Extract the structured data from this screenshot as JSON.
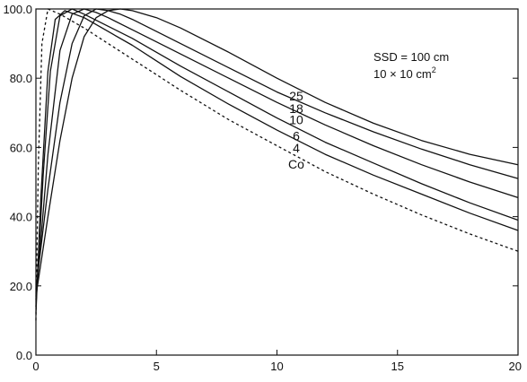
{
  "chart_data": {
    "type": "line",
    "title": "",
    "xlabel": "",
    "ylabel": "",
    "xlim": [
      0,
      20
    ],
    "ylim": [
      0,
      100
    ],
    "x_ticks": [
      "0",
      "5",
      "10",
      "15",
      "20"
    ],
    "y_ticks": [
      "0.0",
      "20.0",
      "40.0",
      "60.0",
      "80.0",
      "100.0"
    ],
    "grid": false,
    "annotation": {
      "line1": "SSD = 100 cm",
      "line2": "10 × 10 cm",
      "line2_sup": "2"
    },
    "series": [
      {
        "name": "25",
        "style": "solid",
        "x": [
          0,
          0.5,
          1,
          1.5,
          2,
          2.5,
          3,
          3.5,
          4,
          5,
          6,
          8,
          10,
          12,
          14,
          16,
          18,
          20
        ],
        "values": [
          17,
          40,
          62,
          80,
          92,
          97.5,
          99.5,
          100,
          99.5,
          97.5,
          94.5,
          87.5,
          80,
          73,
          67,
          62,
          58,
          55
        ]
      },
      {
        "name": "18",
        "style": "solid",
        "x": [
          0,
          0.5,
          1,
          1.5,
          2,
          2.5,
          3,
          3.5,
          4,
          5,
          6,
          8,
          10,
          12,
          14,
          16,
          18,
          20
        ],
        "values": [
          19,
          48,
          73,
          90,
          98,
          100,
          99.5,
          98.5,
          97,
          93.5,
          90,
          83,
          76,
          70,
          64.5,
          59.5,
          55,
          51
        ]
      },
      {
        "name": "10",
        "style": "solid",
        "x": [
          0,
          0.5,
          1,
          1.5,
          2,
          2.5,
          3,
          4,
          5,
          6,
          8,
          10,
          12,
          14,
          16,
          18,
          20
        ],
        "values": [
          16,
          58,
          88,
          98.5,
          100,
          99,
          97.5,
          94,
          90.5,
          87,
          80,
          73,
          66.5,
          60.5,
          55,
          50,
          45.5
        ]
      },
      {
        "name": "6",
        "style": "solid",
        "x": [
          0,
          0.3,
          0.6,
          1,
          1.5,
          2,
          3,
          4,
          5,
          6,
          8,
          10,
          12,
          14,
          16,
          18,
          20
        ],
        "values": [
          14,
          52,
          82,
          98,
          100,
          98.5,
          95,
          91.5,
          87.5,
          83.5,
          76,
          68.5,
          61.5,
          55.5,
          49.5,
          44,
          39
        ]
      },
      {
        "name": "4",
        "style": "solid",
        "x": [
          0,
          0.2,
          0.5,
          0.8,
          1.2,
          2,
          3,
          4,
          5,
          6,
          8,
          10,
          12,
          14,
          16,
          18,
          20
        ],
        "values": [
          12,
          45,
          82,
          97,
          99.5,
          97.5,
          93.5,
          89.5,
          85,
          80.5,
          72.5,
          65,
          58,
          52,
          46.5,
          41,
          36
        ]
      },
      {
        "name": "Co",
        "style": "dashed",
        "x": [
          0,
          0.1,
          0.25,
          0.5,
          1,
          2,
          3,
          4,
          5,
          6,
          8,
          10,
          12,
          14,
          16,
          18,
          20
        ],
        "values": [
          10,
          55,
          90,
          100,
          98.5,
          94.5,
          90,
          85.5,
          81,
          76.5,
          68,
          60.5,
          53,
          46.5,
          40.5,
          35,
          30
        ]
      }
    ]
  }
}
